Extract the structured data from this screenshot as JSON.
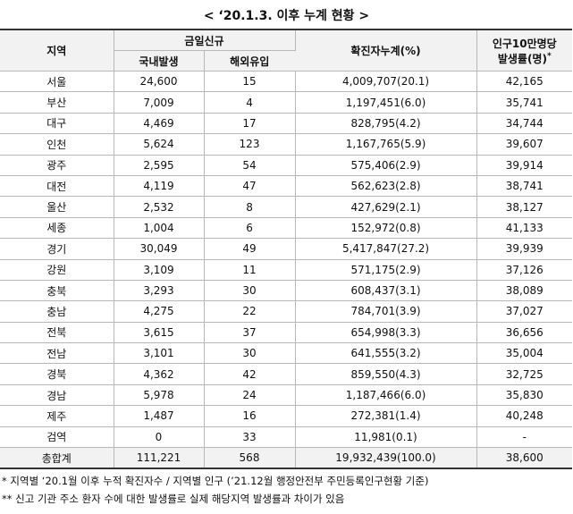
{
  "title": "< ‘20.1.3. 이후 누계 현황 >",
  "table": {
    "headers": {
      "region": "지역",
      "group": "금일신규",
      "domestic": "국내발생",
      "overseas": "해외유입",
      "cumulative": "확진자누계(%)",
      "rate_line1": "인구10만명당",
      "rate_line2": "발생률(명)",
      "rate_mark": "*"
    },
    "rows": [
      [
        "서울",
        "24,600",
        "15",
        "4,009,707(20.1)",
        "42,165"
      ],
      [
        "부산",
        "7,009",
        "4",
        "1,197,451(6.0)",
        "35,741"
      ],
      [
        "대구",
        "4,469",
        "17",
        "828,795(4.2)",
        "34,744"
      ],
      [
        "인천",
        "5,624",
        "123",
        "1,167,765(5.9)",
        "39,607"
      ],
      [
        "광주",
        "2,595",
        "54",
        "575,406(2.9)",
        "39,914"
      ],
      [
        "대전",
        "4,119",
        "47",
        "562,623(2.8)",
        "38,741"
      ],
      [
        "울산",
        "2,532",
        "8",
        "427,629(2.1)",
        "38,127"
      ],
      [
        "세종",
        "1,004",
        "6",
        "152,972(0.8)",
        "41,133"
      ],
      [
        "경기",
        "30,049",
        "49",
        "5,417,847(27.2)",
        "39,939"
      ],
      [
        "강원",
        "3,109",
        "11",
        "571,175(2.9)",
        "37,126"
      ],
      [
        "충북",
        "3,293",
        "30",
        "608,437(3.1)",
        "38,089"
      ],
      [
        "충남",
        "4,275",
        "22",
        "784,701(3.9)",
        "37,027"
      ],
      [
        "전북",
        "3,615",
        "37",
        "654,998(3.3)",
        "36,656"
      ],
      [
        "전남",
        "3,101",
        "30",
        "641,555(3.2)",
        "35,004"
      ],
      [
        "경북",
        "4,362",
        "42",
        "859,550(4.3)",
        "32,725"
      ],
      [
        "경남",
        "5,978",
        "24",
        "1,187,466(6.0)",
        "35,830"
      ],
      [
        "제주",
        "1,487",
        "16",
        "272,381(1.4)",
        "40,248"
      ],
      [
        "검역",
        "0",
        "33",
        "11,981(0.1)",
        "-"
      ],
      [
        "총합계",
        "111,221",
        "568",
        "19,932,439(100.0)",
        "38,600"
      ]
    ]
  },
  "footnotes": [
    "* 지역별 ‘20.1월 이후 누적 확진자수 / 지역별 인구 (’21.12월 행정안전부 주민등록인구현황 기준)",
    "** 신고 기관 주소 환자 수에 대한 발생률로 실제 해당지역 발생률과 차이가 있음"
  ]
}
